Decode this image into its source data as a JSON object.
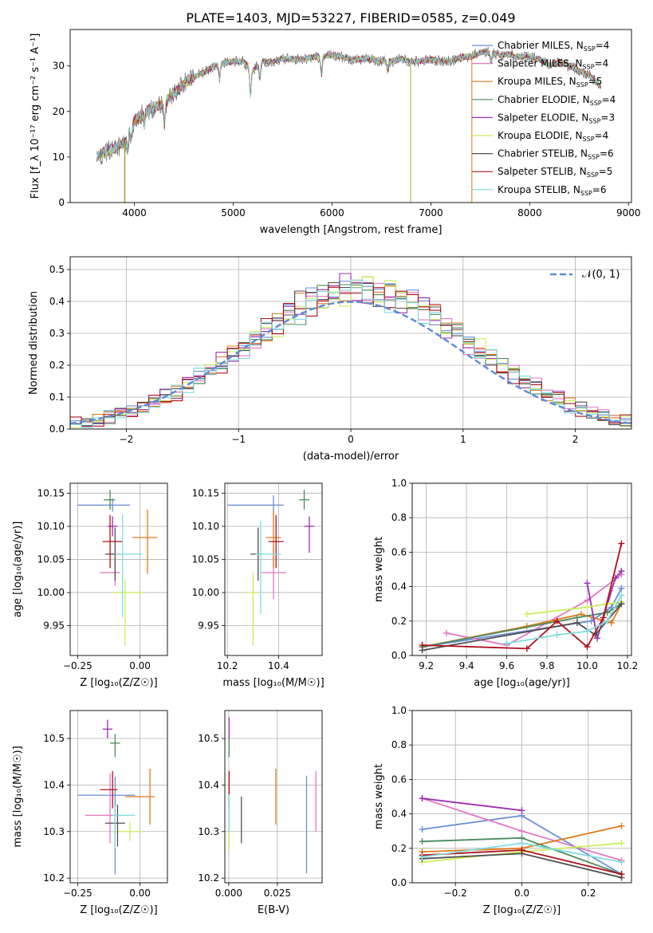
{
  "figure": {
    "title": "PLATE=1403, MJD=53227, FIBERID=0585, z=0.049"
  },
  "models": [
    {
      "name": "Chabrier MILES",
      "nssp": "4",
      "color": "#6b8fd8"
    },
    {
      "name": "Salpeter MILES",
      "nssp": "4",
      "color": "#e377c2"
    },
    {
      "name": "Kroupa MILES",
      "nssp": "5",
      "color": "#e07b1a"
    },
    {
      "name": "Chabrier ELODIE",
      "nssp": "4",
      "color": "#4b8b5b"
    },
    {
      "name": "Salpeter ELODIE",
      "nssp": "3",
      "color": "#9b30b0"
    },
    {
      "name": "Kroupa ELODIE",
      "nssp": "4",
      "color": "#c9ee5a"
    },
    {
      "name": "Chabrier STELIB",
      "nssp": "6",
      "color": "#505050"
    },
    {
      "name": "Salpeter STELIB",
      "nssp": "5",
      "color": "#b0101c"
    },
    {
      "name": "Kroupa STELIB",
      "nssp": "6",
      "color": "#7fdcdc"
    }
  ],
  "chart_data": [
    {
      "type": "line",
      "id": "spectrum",
      "xlabel": "wavelength [Angstrom, rest frame]",
      "ylabel": "Flux [f_λ 10⁻¹⁷ erg cm⁻² s⁻¹ A⁻¹]",
      "xlim": [
        3350,
        9030
      ],
      "ylim": [
        0,
        38
      ],
      "xticks": [
        4000,
        5000,
        6000,
        7000,
        8000,
        9000
      ],
      "yticks": [
        0,
        10,
        20,
        30
      ],
      "legend": "top-right",
      "continuum": [
        [
          3620,
          10
        ],
        [
          3700,
          11
        ],
        [
          3800,
          12
        ],
        [
          3900,
          13
        ],
        [
          4000,
          18
        ],
        [
          4100,
          20
        ],
        [
          4200,
          21
        ],
        [
          4300,
          22
        ],
        [
          4400,
          24
        ],
        [
          4500,
          26
        ],
        [
          4600,
          27.5
        ],
        [
          4700,
          28.5
        ],
        [
          4800,
          30
        ],
        [
          4900,
          30.5
        ],
        [
          5000,
          31
        ],
        [
          5100,
          31
        ],
        [
          5200,
          29
        ],
        [
          5300,
          31
        ],
        [
          5400,
          31
        ],
        [
          5500,
          31.5
        ],
        [
          5600,
          31.5
        ],
        [
          5700,
          31.5
        ],
        [
          5800,
          32
        ],
        [
          5900,
          32
        ],
        [
          6000,
          32.5
        ],
        [
          6100,
          32
        ],
        [
          6200,
          31.5
        ],
        [
          6300,
          31.5
        ],
        [
          6400,
          31.5
        ],
        [
          6500,
          31
        ],
        [
          6600,
          31
        ],
        [
          6700,
          31.5
        ],
        [
          6800,
          31
        ],
        [
          6900,
          31
        ],
        [
          7000,
          31.5
        ],
        [
          7100,
          31
        ],
        [
          7200,
          31
        ],
        [
          7300,
          32
        ],
        [
          7400,
          32
        ],
        [
          7500,
          33
        ],
        [
          7600,
          33
        ],
        [
          7700,
          32.5
        ],
        [
          7800,
          32.5
        ],
        [
          7900,
          32
        ],
        [
          8000,
          32
        ],
        [
          8100,
          31.5
        ],
        [
          8200,
          30
        ],
        [
          8300,
          31
        ],
        [
          8400,
          30
        ],
        [
          8500,
          29
        ],
        [
          8600,
          28
        ],
        [
          8700,
          26
        ],
        [
          8720,
          25
        ]
      ],
      "dips": [
        [
          3933,
          -3
        ],
        [
          3968,
          -2.5
        ],
        [
          4101,
          -3
        ],
        [
          4304,
          -5
        ],
        [
          4861,
          -3
        ],
        [
          5175,
          -6
        ],
        [
          5270,
          -3
        ],
        [
          5893,
          -4
        ],
        [
          6563,
          -2
        ],
        [
          7610,
          -2
        ]
      ],
      "spikes": [
        [
          3900,
          0,
          "#a8a040"
        ],
        [
          3905,
          0,
          "#a8a040"
        ],
        [
          6795,
          0,
          "#a8a040"
        ],
        [
          7415,
          0,
          "#e07b1a"
        ]
      ]
    },
    {
      "type": "bar",
      "id": "residuals",
      "xlabel": "(data-model)/error",
      "ylabel": "Normed distribution",
      "xlim": [
        -2.5,
        2.5
      ],
      "ylim": [
        0,
        0.54
      ],
      "xticks": [
        -2,
        -1,
        0,
        1,
        2
      ],
      "yticks": [
        0.0,
        0.1,
        0.2,
        0.3,
        0.4,
        0.5
      ],
      "legend": "top-right",
      "normal_label": "𝒩(0, 1)",
      "normal_color": "#5b8bd8",
      "bin_width": 0.1
    },
    {
      "type": "scatter",
      "id": "age_vs_z",
      "xlabel": "Z [log₁₀(Z/Z☉)]",
      "ylabel": "age  [log₁₀(age/yr)]",
      "xlim": [
        -0.28,
        0.11
      ],
      "ylim": [
        9.905,
        10.165
      ],
      "xticks": [
        -0.25,
        0.0
      ],
      "yticks": [
        9.95,
        10.0,
        10.05,
        10.1,
        10.15
      ],
      "points": [
        {
          "x": -0.11,
          "y": 10.132,
          "xerr": [
            0.14,
            0.07
          ],
          "yerr": [
            0.01,
            0.01
          ]
        },
        {
          "x": -0.1,
          "y": 10.03,
          "xerr": [
            0.06,
            0.02
          ],
          "yerr": [
            0.02,
            0.02
          ]
        },
        {
          "x": 0.03,
          "y": 10.083,
          "xerr": [
            0.06,
            0.04
          ],
          "yerr": [
            0.055,
            0.042
          ]
        },
        {
          "x": -0.12,
          "y": 10.14,
          "xerr": [
            0.025,
            0.02
          ],
          "yerr": [
            0.015,
            0.015
          ]
        },
        {
          "x": -0.11,
          "y": 10.1,
          "xerr": [
            0.02,
            0.02
          ],
          "yerr": [
            0.015,
            0.015
          ]
        },
        {
          "x": -0.06,
          "y": 10.0,
          "xerr": [
            0.05,
            0.08
          ],
          "yerr": [
            0.08,
            0.02
          ]
        },
        {
          "x": -0.1,
          "y": 10.058,
          "xerr": [
            0.04,
            0.02
          ],
          "yerr": [
            0.04,
            0.04
          ]
        },
        {
          "x": -0.12,
          "y": 10.077,
          "xerr": [
            0.03,
            0.05
          ],
          "yerr": [
            0.04,
            0.04
          ]
        },
        {
          "x": -0.07,
          "y": 10.058,
          "xerr": [
            0.03,
            0.08
          ],
          "yerr": [
            0.095,
            0.06
          ]
        }
      ]
    },
    {
      "type": "scatter",
      "id": "age_vs_mass",
      "xlabel": "mass [log₁₀(M/M☉)]",
      "ylabel": "",
      "xlim": [
        10.19,
        10.57
      ],
      "ylim": [
        9.905,
        10.165
      ],
      "xticks": [
        10.2,
        10.4
      ],
      "yticks": [
        9.95,
        10.0,
        10.05,
        10.1,
        10.15
      ],
      "points": [
        {
          "x": 10.38,
          "y": 10.132,
          "xerr": [
            0.18,
            0.04
          ],
          "yerr": [
            0.015,
            0.015
          ]
        },
        {
          "x": 10.38,
          "y": 10.03,
          "xerr": [
            0.05,
            0.05
          ],
          "yerr": [
            0.04,
            0.04
          ]
        },
        {
          "x": 10.38,
          "y": 10.083,
          "xerr": [
            0.03,
            0.03
          ],
          "yerr": [
            0.045,
            0.04
          ]
        },
        {
          "x": 10.5,
          "y": 10.14,
          "xerr": [
            0.02,
            0.02
          ],
          "yerr": [
            0.015,
            0.015
          ]
        },
        {
          "x": 10.52,
          "y": 10.1,
          "xerr": [
            0.02,
            0.02
          ],
          "yerr": [
            0.04,
            0.015
          ]
        },
        {
          "x": 10.3,
          "y": 10.0,
          "xerr": [
            0.02,
            0.02
          ],
          "yerr": [
            0.08,
            0.03
          ]
        },
        {
          "x": 10.32,
          "y": 10.058,
          "xerr": [
            0.03,
            0.02
          ],
          "yerr": [
            0.04,
            0.04
          ]
        },
        {
          "x": 10.39,
          "y": 10.077,
          "xerr": [
            0.03,
            0.03
          ],
          "yerr": [
            0.04,
            0.04
          ]
        },
        {
          "x": 10.33,
          "y": 10.058,
          "xerr": [
            0.02,
            0.08
          ],
          "yerr": [
            0.09,
            0.05
          ]
        }
      ]
    },
    {
      "type": "scatter",
      "id": "mass_vs_z",
      "xlabel": "Z [log₁₀(Z/Z☉)]",
      "ylabel": "mass [log₁₀(M/M☉)]",
      "xlim": [
        -0.28,
        0.11
      ],
      "ylim": [
        10.19,
        10.56
      ],
      "xticks": [
        -0.25,
        0.0
      ],
      "yticks": [
        10.2,
        10.3,
        10.4,
        10.5
      ],
      "points": [
        {
          "x": -0.1,
          "y": 10.378,
          "xerr": [
            0.15,
            0.08
          ],
          "yerr": [
            0.17,
            0.04
          ]
        },
        {
          "x": -0.12,
          "y": 10.335,
          "xerr": [
            0.1,
            0.04
          ],
          "yerr": [
            0.06,
            0.09
          ]
        },
        {
          "x": 0.04,
          "y": 10.375,
          "xerr": [
            0.1,
            0.02
          ],
          "yerr": [
            0.06,
            0.06
          ]
        },
        {
          "x": -0.1,
          "y": 10.49,
          "xerr": [
            0.02,
            0.02
          ],
          "yerr": [
            0.03,
            0.02
          ]
        },
        {
          "x": -0.13,
          "y": 10.52,
          "xerr": [
            0.02,
            0.02
          ],
          "yerr": [
            0.02,
            0.02
          ]
        },
        {
          "x": -0.04,
          "y": 10.3,
          "xerr": [
            0.06,
            0.05
          ],
          "yerr": [
            0.02,
            0.02
          ]
        },
        {
          "x": -0.09,
          "y": 10.318,
          "xerr": [
            0.05,
            0.03
          ],
          "yerr": [
            0.05,
            0.04
          ]
        },
        {
          "x": -0.11,
          "y": 10.39,
          "xerr": [
            0.05,
            0.02
          ],
          "yerr": [
            0.04,
            0.04
          ]
        },
        {
          "x": -0.1,
          "y": 10.335,
          "xerr": [
            0.01,
            0.08
          ],
          "yerr": [
            0.07,
            0.02
          ]
        }
      ]
    },
    {
      "type": "scatter",
      "id": "mass_vs_ebv",
      "xlabel": "E(B-V)",
      "ylabel": "",
      "xlim": [
        -0.002,
        0.048
      ],
      "ylim": [
        10.19,
        10.56
      ],
      "xticks": [
        0.0,
        0.025
      ],
      "yticks": [
        10.2,
        10.3,
        10.4,
        10.5
      ],
      "points": [
        {
          "x": 0.04,
          "y": 10.31,
          "xerr": [
            0,
            0
          ],
          "yerr": [
            0.1,
            0.11
          ]
        },
        {
          "x": 0.0448,
          "y": 10.36,
          "xerr": [
            0,
            0
          ],
          "yerr": [
            0.06,
            0.07
          ]
        },
        {
          "x": 0.0242,
          "y": 10.375,
          "xerr": [
            0,
            0
          ],
          "yerr": [
            0.06,
            0.06
          ]
        },
        {
          "x": 0.0002,
          "y": 10.49,
          "xerr": [
            0,
            0
          ],
          "yerr": [
            0.03,
            0.02
          ]
        },
        {
          "x": 0.0002,
          "y": 10.52,
          "xerr": [
            0,
            0
          ],
          "yerr": [
            0.02,
            0.025
          ]
        },
        {
          "x": 0.0002,
          "y": 10.3,
          "xerr": [
            0,
            0
          ],
          "yerr": [
            0.04,
            0.02
          ]
        },
        {
          "x": 0.0065,
          "y": 10.325,
          "xerr": [
            0,
            0
          ],
          "yerr": [
            0.05,
            0.05
          ]
        },
        {
          "x": 0.0002,
          "y": 10.39,
          "xerr": [
            0,
            0
          ],
          "yerr": [
            0.04,
            0.04
          ]
        },
        {
          "x": 0.0002,
          "y": 10.34,
          "xerr": [
            0,
            0
          ],
          "yerr": [
            0.04,
            0.04
          ]
        }
      ]
    },
    {
      "type": "line",
      "id": "weight_vs_age",
      "xlabel": "age  [log₁₀(age/yr)]",
      "ylabel": "mass weight",
      "xlim": [
        9.13,
        10.22
      ],
      "ylim": [
        0,
        1.0
      ],
      "xticks": [
        9.2,
        9.4,
        9.6,
        9.8,
        10.0,
        10.2
      ],
      "yticks": [
        0.0,
        0.2,
        0.4,
        0.6,
        0.8,
        1.0
      ],
      "series": [
        {
          "x": [
            9.18,
            10.02,
            10.12,
            10.17
          ],
          "y": [
            0.05,
            0.2,
            0.28,
            0.39
          ]
        },
        {
          "x": [
            9.3,
            9.6,
            10.0,
            10.17
          ],
          "y": [
            0.13,
            0.06,
            0.32,
            0.47
          ]
        },
        {
          "x": [
            9.18,
            9.7,
            9.97,
            10.12,
            10.17
          ],
          "y": [
            0.05,
            0.17,
            0.24,
            0.19,
            0.3
          ]
        },
        {
          "x": [
            9.18,
            9.95,
            10.1,
            10.17
          ],
          "y": [
            0.05,
            0.22,
            0.25,
            0.3
          ]
        },
        {
          "x": [
            10.0,
            10.05,
            10.14,
            10.17
          ],
          "y": [
            0.42,
            0.1,
            0.45,
            0.49
          ]
        },
        {
          "x": [
            9.7,
            10.0,
            10.1,
            10.17
          ],
          "y": [
            0.24,
            0.28,
            0.3,
            0.31
          ]
        },
        {
          "x": [
            9.18,
            9.95,
            10.04,
            10.17
          ],
          "y": [
            0.03,
            0.19,
            0.12,
            0.3
          ]
        },
        {
          "x": [
            9.18,
            9.7,
            9.85,
            10.0,
            10.08,
            10.17
          ],
          "y": [
            0.06,
            0.04,
            0.2,
            0.05,
            0.22,
            0.65
          ]
        },
        {
          "x": [
            9.6,
            9.85,
            10.0,
            10.1,
            10.17
          ],
          "y": [
            0.07,
            0.12,
            0.14,
            0.2,
            0.35
          ]
        }
      ]
    },
    {
      "type": "line",
      "id": "weight_vs_z",
      "xlabel": "Z [log₁₀(Z/Z☉)]",
      "ylabel": "mass weight",
      "xlim": [
        -0.33,
        0.33
      ],
      "ylim": [
        0,
        1.0
      ],
      "xticks": [
        -0.2,
        0.0,
        0.2
      ],
      "yticks": [
        0.0,
        0.2,
        0.4,
        0.6,
        0.8,
        1.0
      ],
      "series": [
        {
          "x": [
            -0.3,
            0.0,
            0.3
          ],
          "y": [
            0.31,
            0.39,
            0.05
          ]
        },
        {
          "x": [
            -0.3,
            0.0,
            0.3
          ],
          "y": [
            0.49,
            0.3,
            0.13
          ]
        },
        {
          "x": [
            -0.3,
            0.0,
            0.3
          ],
          "y": [
            0.18,
            0.2,
            0.33
          ]
        },
        {
          "x": [
            -0.3,
            0.0,
            0.3
          ],
          "y": [
            0.24,
            0.26,
            0.05
          ]
        },
        {
          "x": [
            -0.3,
            0.0
          ],
          "y": [
            0.49,
            0.42
          ]
        },
        {
          "x": [
            -0.3,
            0.0,
            0.3
          ],
          "y": [
            0.12,
            0.18,
            0.23
          ]
        },
        {
          "x": [
            -0.3,
            0.0,
            0.3
          ],
          "y": [
            0.14,
            0.17,
            0.03
          ]
        },
        {
          "x": [
            -0.3,
            0.0,
            0.3
          ],
          "y": [
            0.16,
            0.19,
            0.05
          ]
        },
        {
          "x": [
            -0.3,
            0.0,
            0.3
          ],
          "y": [
            0.15,
            0.23,
            0.12
          ]
        }
      ]
    }
  ]
}
